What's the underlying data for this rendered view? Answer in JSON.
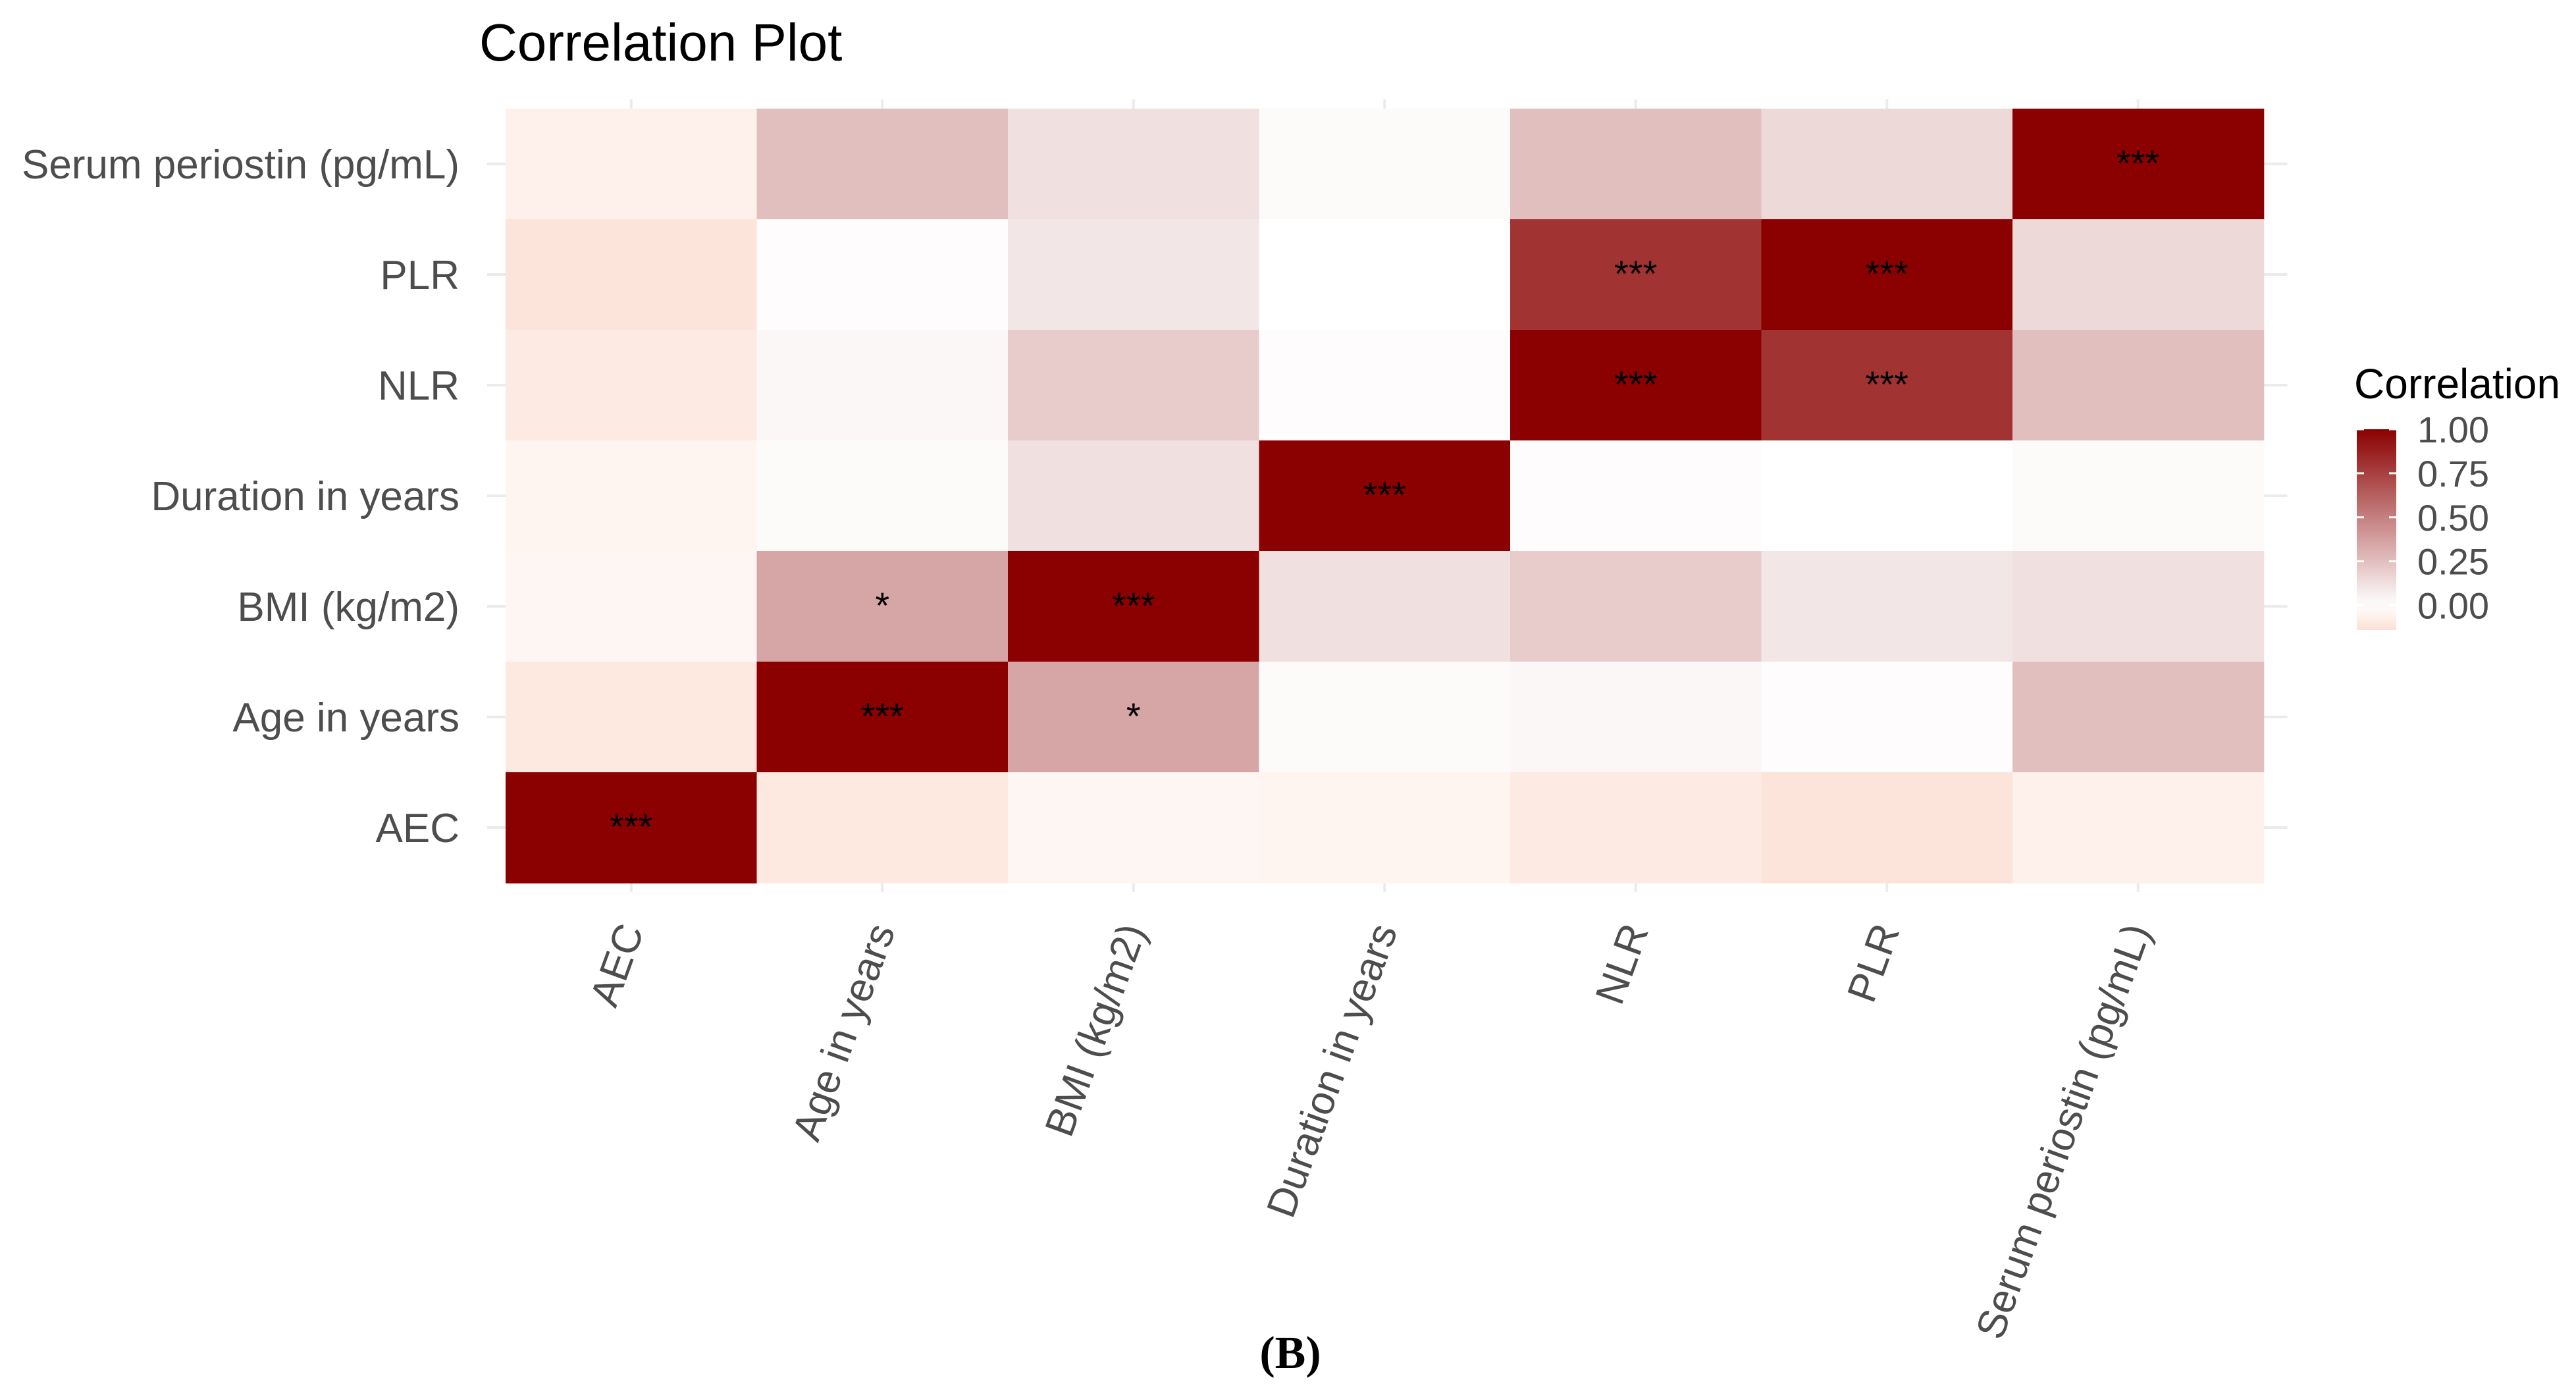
{
  "chart_data": {
    "type": "heatmap",
    "title": "Correlation Plot",
    "xlabel": "",
    "ylabel": "",
    "variables": [
      "AEC",
      "Age in years",
      "BMI (kg/m2)",
      "Duration in years",
      "NLR",
      "PLR",
      "Serum periostin (pg/mL)"
    ],
    "x_categories": [
      "AEC",
      "Age in years",
      "BMI (kg/m2)",
      "Duration in years",
      "NLR",
      "PLR",
      "Serum periostin (pg/mL)"
    ],
    "y_categories_top_to_bottom": [
      "Serum periostin (pg/mL)",
      "PLR",
      "NLR",
      "Duration in years",
      "BMI (kg/m2)",
      "Age in years",
      "AEC"
    ],
    "matrix": [
      [
        1.0,
        -0.1,
        -0.04,
        -0.05,
        -0.09,
        -0.12,
        -0.07
      ],
      [
        -0.1,
        1.0,
        0.35,
        0.02,
        0.03,
        0.01,
        0.25
      ],
      [
        -0.04,
        0.35,
        1.0,
        0.12,
        0.2,
        0.1,
        0.12
      ],
      [
        -0.05,
        0.02,
        0.12,
        1.0,
        0.01,
        0.0,
        0.02
      ],
      [
        -0.09,
        0.03,
        0.2,
        0.01,
        1.0,
        0.8,
        0.25
      ],
      [
        -0.12,
        0.01,
        0.1,
        0.0,
        0.8,
        1.0,
        0.15
      ],
      [
        -0.07,
        0.25,
        0.12,
        0.02,
        0.25,
        0.15,
        1.0
      ]
    ],
    "significance": [
      [
        "***",
        "",
        "",
        "",
        "",
        "",
        ""
      ],
      [
        "",
        "***",
        "*",
        "",
        "",
        "",
        ""
      ],
      [
        "",
        "*",
        "***",
        "",
        "",
        "",
        ""
      ],
      [
        "",
        "",
        "",
        "***",
        "",
        "",
        ""
      ],
      [
        "",
        "",
        "",
        "",
        "***",
        "***",
        ""
      ],
      [
        "",
        "",
        "",
        "",
        "***",
        "***",
        ""
      ],
      [
        "",
        "",
        "",
        "",
        "",
        "",
        "***"
      ]
    ],
    "color_scale": {
      "low": "#FCE0D4",
      "mid": "#FFFFFF",
      "high": "#8B0000",
      "mid_value": 0.0,
      "limits": [
        -0.14,
        1.0
      ]
    },
    "legend": {
      "title": "Correlation",
      "ticks": [
        "1.00",
        "0.75",
        "0.50",
        "0.25",
        "0.00"
      ],
      "tick_values": [
        1.0,
        0.75,
        0.5,
        0.25,
        0.0
      ],
      "position": "right"
    },
    "grid": true,
    "gridline_color": "#EBEBEB",
    "axis_text_color": "#4D4D4D",
    "panel_label": "(B)"
  }
}
